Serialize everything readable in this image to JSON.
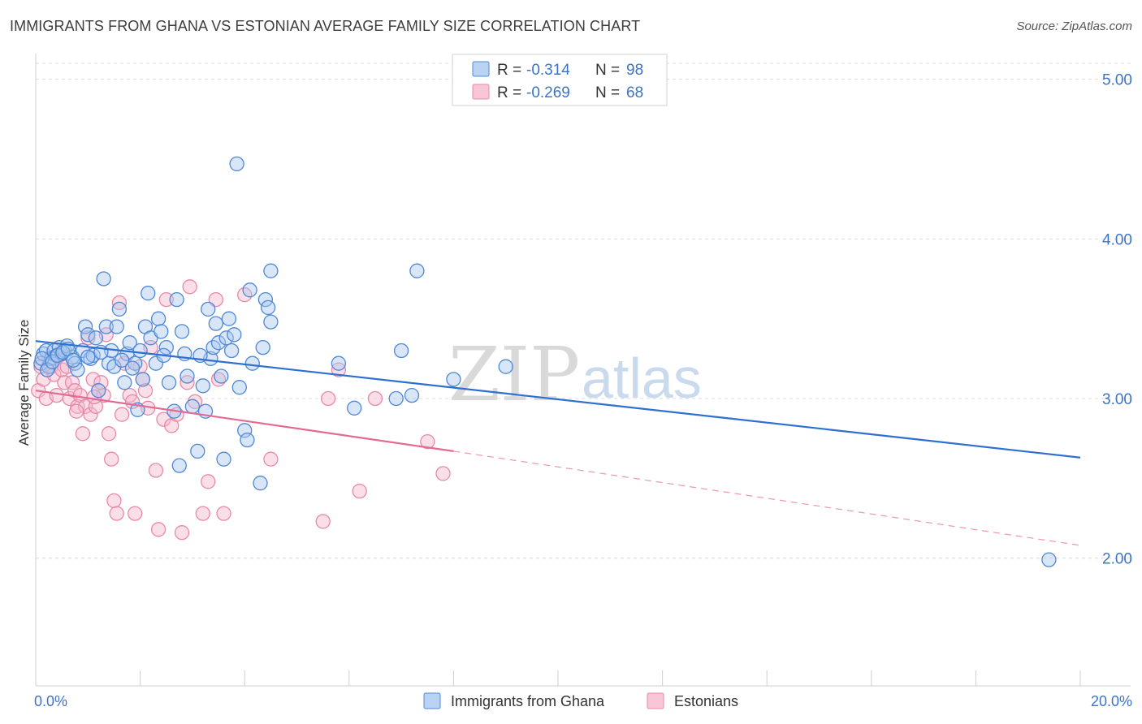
{
  "title": "IMMIGRANTS FROM GHANA VS ESTONIAN AVERAGE FAMILY SIZE CORRELATION CHART",
  "source": "Source: ZipAtlas.com",
  "watermark": {
    "zip": "ZIP",
    "atlas": "atlas"
  },
  "colors": {
    "blue_fill": "#a9c8f0",
    "blue_stroke": "#4f88d6",
    "blue_line": "#2f6fcf",
    "pink_fill": "#f6b8cc",
    "pink_stroke": "#e889a8",
    "pink_line": "#e36a94",
    "grid": "#dcdcdc",
    "tick_text": "#3d73c7"
  },
  "legend": {
    "rows": [
      {
        "r_label": "R = ",
        "r_value": "-0.314",
        "n_label": "N = ",
        "n_value": "98",
        "series": "ghana"
      },
      {
        "r_label": "R = ",
        "r_value": "-0.269",
        "n_label": "N = ",
        "n_value": "68",
        "series": "estonians"
      }
    ]
  },
  "bottom_legend": [
    {
      "label": "Immigrants from Ghana",
      "series": "ghana"
    },
    {
      "label": "Estonians",
      "series": "estonians"
    }
  ],
  "chart_data": {
    "type": "scatter",
    "title": "IMMIGRANTS FROM GHANA VS ESTONIAN AVERAGE FAMILY SIZE CORRELATION CHART",
    "xlabel": "",
    "ylabel": "Average Family Size",
    "xlim": [
      0,
      20
    ],
    "ylim": [
      1.2,
      5.1
    ],
    "x_tick_labels": [
      "0.0%",
      "20.0%"
    ],
    "y_ticks": [
      2.0,
      3.0,
      4.0,
      5.0
    ],
    "y_tick_labels": [
      "2.00",
      "3.00",
      "4.00",
      "5.00"
    ],
    "grid": true,
    "legend_placement": "top-center",
    "series": [
      {
        "name": "Immigrants from Ghana",
        "key": "ghana",
        "trend": {
          "x": [
            0,
            20
          ],
          "y": [
            3.36,
            2.63
          ],
          "dashed_from": null
        },
        "points": [
          [
            0.1,
            3.22
          ],
          [
            0.15,
            3.28
          ],
          [
            0.2,
            3.3
          ],
          [
            0.25,
            3.2
          ],
          [
            0.3,
            3.25
          ],
          [
            0.35,
            3.3
          ],
          [
            0.4,
            3.27
          ],
          [
            0.45,
            3.32
          ],
          [
            0.5,
            3.28
          ],
          [
            0.55,
            3.3
          ],
          [
            0.6,
            3.33
          ],
          [
            0.7,
            3.26
          ],
          [
            0.75,
            3.22
          ],
          [
            0.8,
            3.18
          ],
          [
            0.9,
            3.3
          ],
          [
            0.95,
            3.45
          ],
          [
            1.0,
            3.4
          ],
          [
            1.05,
            3.25
          ],
          [
            1.1,
            3.27
          ],
          [
            1.15,
            3.38
          ],
          [
            1.2,
            3.05
          ],
          [
            1.3,
            3.75
          ],
          [
            1.35,
            3.45
          ],
          [
            1.4,
            3.22
          ],
          [
            1.45,
            3.3
          ],
          [
            1.5,
            3.2
          ],
          [
            1.55,
            3.45
          ],
          [
            1.6,
            3.56
          ],
          [
            1.7,
            3.1
          ],
          [
            1.75,
            3.28
          ],
          [
            1.8,
            3.35
          ],
          [
            1.9,
            3.22
          ],
          [
            1.95,
            2.93
          ],
          [
            2.0,
            3.3
          ],
          [
            2.05,
            3.12
          ],
          [
            2.1,
            3.45
          ],
          [
            2.15,
            3.66
          ],
          [
            2.2,
            3.38
          ],
          [
            2.3,
            3.22
          ],
          [
            2.35,
            3.5
          ],
          [
            2.4,
            3.42
          ],
          [
            2.5,
            3.32
          ],
          [
            2.55,
            3.1
          ],
          [
            2.65,
            2.92
          ],
          [
            2.7,
            3.62
          ],
          [
            2.75,
            2.58
          ],
          [
            2.8,
            3.42
          ],
          [
            2.85,
            3.28
          ],
          [
            2.9,
            3.14
          ],
          [
            3.0,
            2.95
          ],
          [
            3.1,
            2.67
          ],
          [
            3.2,
            3.08
          ],
          [
            3.25,
            2.92
          ],
          [
            3.3,
            3.56
          ],
          [
            3.35,
            3.25
          ],
          [
            3.4,
            3.32
          ],
          [
            3.45,
            3.47
          ],
          [
            3.5,
            3.35
          ],
          [
            3.55,
            3.14
          ],
          [
            3.6,
            2.62
          ],
          [
            3.65,
            3.38
          ],
          [
            3.7,
            3.5
          ],
          [
            3.75,
            3.3
          ],
          [
            3.8,
            3.4
          ],
          [
            3.85,
            4.47
          ],
          [
            3.9,
            3.07
          ],
          [
            4.0,
            2.8
          ],
          [
            4.05,
            2.74
          ],
          [
            4.1,
            3.68
          ],
          [
            4.15,
            3.22
          ],
          [
            4.3,
            2.47
          ],
          [
            4.35,
            3.32
          ],
          [
            4.4,
            3.62
          ],
          [
            4.45,
            3.57
          ],
          [
            4.5,
            3.48
          ],
          [
            4.5,
            3.8
          ],
          [
            5.8,
            3.22
          ],
          [
            6.1,
            2.94
          ],
          [
            6.9,
            3.0
          ],
          [
            7.0,
            3.3
          ],
          [
            7.2,
            3.02
          ],
          [
            7.3,
            3.8
          ],
          [
            8.0,
            3.12
          ],
          [
            9.0,
            3.2
          ],
          [
            19.4,
            1.99
          ],
          [
            0.12,
            3.25
          ],
          [
            0.22,
            3.18
          ],
          [
            0.32,
            3.23
          ],
          [
            0.42,
            3.27
          ],
          [
            0.52,
            3.29
          ],
          [
            0.62,
            3.31
          ],
          [
            0.72,
            3.24
          ],
          [
            1.0,
            3.26
          ],
          [
            1.25,
            3.29
          ],
          [
            1.65,
            3.24
          ],
          [
            1.85,
            3.19
          ],
          [
            2.45,
            3.27
          ],
          [
            3.15,
            3.27
          ]
        ]
      },
      {
        "name": "Estonians",
        "key": "estonians",
        "trend": {
          "x": [
            0,
            8.0,
            20
          ],
          "y": [
            3.05,
            2.67,
            2.08
          ],
          "dashed_from": 8.0
        },
        "points": [
          [
            0.05,
            3.05
          ],
          [
            0.1,
            3.2
          ],
          [
            0.15,
            3.12
          ],
          [
            0.2,
            3.0
          ],
          [
            0.25,
            3.25
          ],
          [
            0.3,
            3.2
          ],
          [
            0.35,
            3.15
          ],
          [
            0.4,
            3.02
          ],
          [
            0.45,
            3.28
          ],
          [
            0.5,
            3.18
          ],
          [
            0.55,
            3.1
          ],
          [
            0.6,
            3.2
          ],
          [
            0.65,
            3.0
          ],
          [
            0.7,
            3.1
          ],
          [
            0.75,
            3.05
          ],
          [
            0.8,
            2.95
          ],
          [
            0.85,
            3.02
          ],
          [
            0.9,
            2.78
          ],
          [
            0.95,
            2.95
          ],
          [
            1.0,
            3.38
          ],
          [
            1.05,
            2.9
          ],
          [
            1.1,
            3.12
          ],
          [
            1.15,
            2.95
          ],
          [
            1.2,
            3.05
          ],
          [
            1.25,
            3.1
          ],
          [
            1.3,
            3.02
          ],
          [
            1.35,
            3.4
          ],
          [
            1.4,
            2.78
          ],
          [
            1.45,
            2.62
          ],
          [
            1.5,
            2.36
          ],
          [
            1.55,
            2.28
          ],
          [
            1.6,
            3.6
          ],
          [
            1.65,
            2.9
          ],
          [
            1.7,
            3.22
          ],
          [
            1.8,
            3.02
          ],
          [
            1.85,
            2.98
          ],
          [
            1.9,
            2.28
          ],
          [
            2.0,
            3.2
          ],
          [
            2.05,
            3.12
          ],
          [
            2.1,
            3.05
          ],
          [
            2.15,
            2.94
          ],
          [
            2.2,
            3.32
          ],
          [
            2.3,
            2.55
          ],
          [
            2.35,
            2.18
          ],
          [
            2.45,
            2.87
          ],
          [
            2.5,
            3.62
          ],
          [
            2.6,
            2.83
          ],
          [
            2.7,
            2.9
          ],
          [
            2.8,
            2.16
          ],
          [
            2.9,
            3.1
          ],
          [
            2.95,
            3.7
          ],
          [
            3.05,
            2.98
          ],
          [
            3.2,
            2.28
          ],
          [
            3.3,
            2.48
          ],
          [
            3.45,
            3.62
          ],
          [
            3.5,
            3.12
          ],
          [
            3.6,
            2.28
          ],
          [
            4.0,
            3.65
          ],
          [
            4.5,
            2.62
          ],
          [
            5.5,
            2.23
          ],
          [
            5.6,
            3.0
          ],
          [
            5.8,
            3.18
          ],
          [
            6.2,
            2.42
          ],
          [
            6.5,
            3.0
          ],
          [
            7.5,
            2.73
          ],
          [
            7.8,
            2.53
          ],
          [
            1.12,
            3.01
          ],
          [
            0.78,
            2.92
          ]
        ]
      }
    ]
  }
}
